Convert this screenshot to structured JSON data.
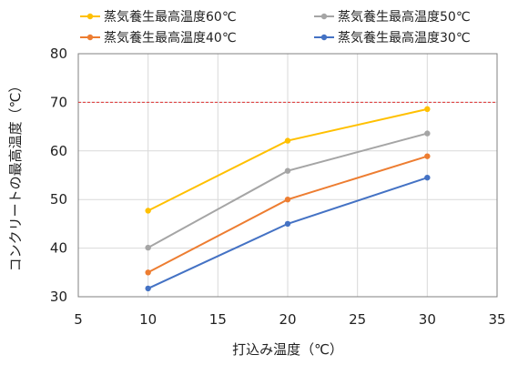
{
  "chart_data": {
    "type": "line",
    "xlabel": "打込み温度（℃）",
    "ylabel": "コンクリートの最高温度（℃）",
    "xlim": [
      5,
      35
    ],
    "ylim": [
      30,
      80
    ],
    "xticks": [
      5,
      10,
      15,
      20,
      25,
      30,
      35
    ],
    "yticks": [
      30,
      40,
      50,
      60,
      70,
      80
    ],
    "grid": true,
    "legend_position": "top",
    "reference_line": {
      "y": 70,
      "color": "#e03030",
      "style": "dashed"
    },
    "x": [
      10,
      20,
      30
    ],
    "series": [
      {
        "name": "蒸気養生最高温度60℃",
        "color": "#ffc000",
        "values": [
          47.7,
          62.1,
          68.6
        ]
      },
      {
        "name": "蒸気養生最高温度50℃",
        "color": "#a5a5a5",
        "values": [
          40.1,
          55.9,
          63.6
        ]
      },
      {
        "name": "蒸気養生最高温度40℃",
        "color": "#ed7d31",
        "values": [
          35.0,
          50.0,
          58.9
        ]
      },
      {
        "name": "蒸気養生最高温度30℃",
        "color": "#4472c4",
        "values": [
          31.7,
          45.0,
          54.5
        ]
      }
    ]
  }
}
